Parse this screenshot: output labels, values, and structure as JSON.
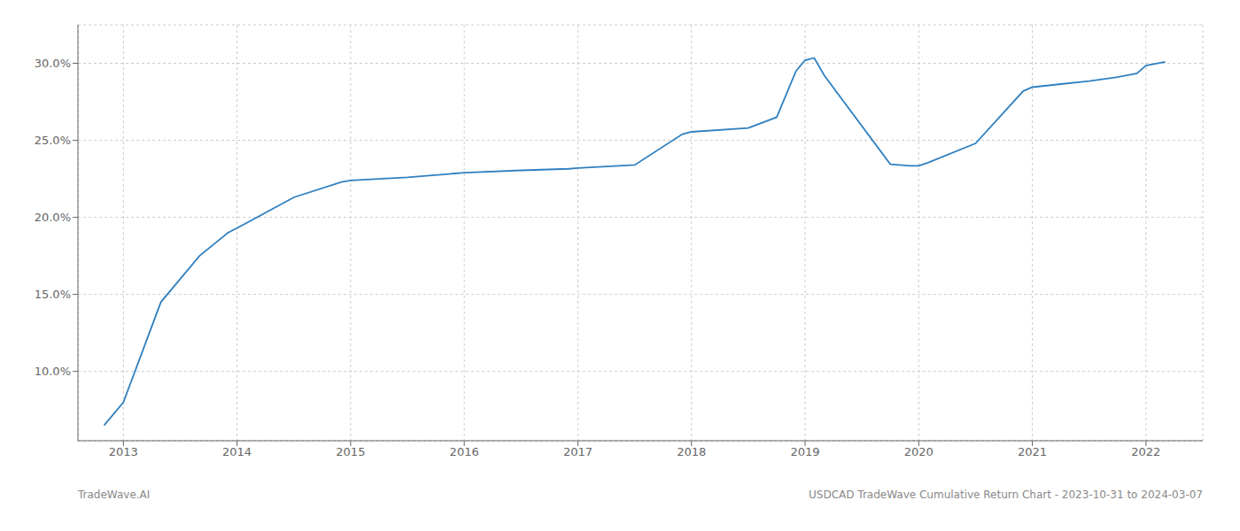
{
  "chart_data": {
    "type": "line",
    "x": [
      2012.83,
      2013.0,
      2013.33,
      2013.67,
      2013.92,
      2014.0,
      2014.5,
      2014.92,
      2015.0,
      2015.5,
      2015.92,
      2016.0,
      2016.5,
      2016.92,
      2017.0,
      2017.5,
      2017.92,
      2018.0,
      2018.5,
      2018.75,
      2018.92,
      2019.0,
      2019.08,
      2019.17,
      2019.75,
      2019.92,
      2020.0,
      2020.08,
      2020.5,
      2020.92,
      2021.0,
      2021.25,
      2021.5,
      2021.75,
      2021.92,
      2022.0,
      2022.17
    ],
    "values": [
      6.5,
      8.0,
      14.5,
      17.5,
      19.0,
      19.3,
      21.3,
      22.3,
      22.4,
      22.6,
      22.85,
      22.9,
      23.05,
      23.15,
      23.2,
      23.4,
      25.4,
      25.55,
      25.8,
      26.5,
      29.5,
      30.2,
      30.35,
      29.2,
      23.45,
      23.35,
      23.35,
      23.55,
      24.8,
      28.2,
      28.45,
      28.65,
      28.85,
      29.1,
      29.35,
      29.85,
      30.1
    ],
    "color": "#3080c0",
    "xlim": [
      2012.6,
      2022.5
    ],
    "ylim": [
      5.5,
      32.5
    ],
    "xticks": [
      2013,
      2014,
      2015,
      2016,
      2017,
      2018,
      2019,
      2020,
      2021,
      2022
    ],
    "yticks": [
      {
        "value": 10.0,
        "label": "10.0%"
      },
      {
        "value": 15.0,
        "label": "15.0%"
      },
      {
        "value": 20.0,
        "label": "20.0%"
      },
      {
        "value": 25.0,
        "label": "25.0%"
      },
      {
        "value": 30.0,
        "label": "30.0%"
      }
    ],
    "grid": true,
    "annotations": [
      "TradeWave.AI",
      "USDCAD TradeWave Cumulative Return Chart - 2023-10-31 to 2024-03-07"
    ]
  }
}
